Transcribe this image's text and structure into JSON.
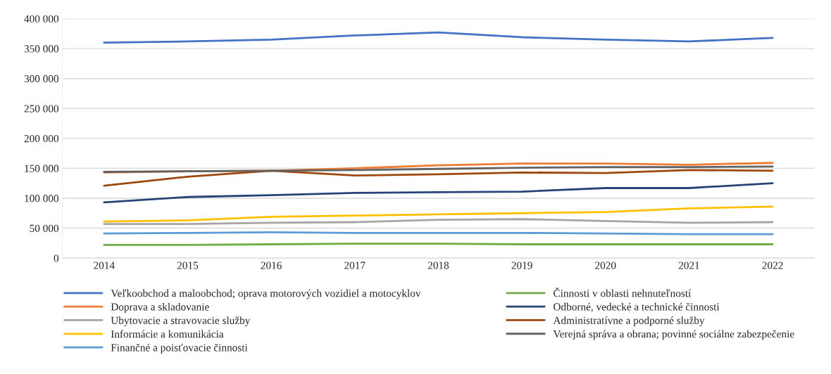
{
  "chart_data": {
    "type": "line",
    "categories": [
      "2014",
      "2015",
      "2016",
      "2017",
      "2018",
      "2019",
      "2020",
      "2021",
      "2022"
    ],
    "ylim": [
      0,
      400000
    ],
    "yticks": [
      {
        "value": 0,
        "label": "0"
      },
      {
        "value": 50000,
        "label": "50 000"
      },
      {
        "value": 100000,
        "label": "100 000"
      },
      {
        "value": 150000,
        "label": "150 000"
      },
      {
        "value": 200000,
        "label": "200 000"
      },
      {
        "value": 250000,
        "label": "250 000"
      },
      {
        "value": 300000,
        "label": "300 000"
      },
      {
        "value": 350000,
        "label": "350 000"
      },
      {
        "value": 400000,
        "label": "400 000"
      }
    ],
    "grid": "y",
    "legend": "bottom",
    "marker": "none",
    "line_style": "solid",
    "series": [
      {
        "name": "Veľkoobchod a maloobchod; oprava motorových vozidiel a motocyklov",
        "color": "#4472c4",
        "values": [
          360000,
          362000,
          365000,
          372000,
          377000,
          369000,
          365000,
          362000,
          368000
        ]
      },
      {
        "name": "Doprava a skladovanie",
        "color": "#ed7d31",
        "values": [
          143000,
          145000,
          146000,
          150000,
          155000,
          158000,
          158000,
          156000,
          159000
        ]
      },
      {
        "name": "Ubytovacie a stravovacie služby",
        "color": "#a5a5a5",
        "values": [
          57000,
          57000,
          59000,
          60000,
          64000,
          65000,
          62000,
          59000,
          60000
        ]
      },
      {
        "name": "Informácie a komunikácia",
        "color": "#ffc000",
        "values": [
          61000,
          63000,
          69000,
          71000,
          73000,
          75000,
          77000,
          83000,
          86000
        ]
      },
      {
        "name": "Finančné a poisťovacie činnosti",
        "color": "#5b9bd5",
        "values": [
          41000,
          42000,
          43000,
          42000,
          42000,
          42000,
          41000,
          40000,
          40000
        ]
      },
      {
        "name": "Činnosti v oblasti nehnuteľností",
        "color": "#70ad47",
        "values": [
          22000,
          22000,
          23000,
          24000,
          24000,
          23000,
          23000,
          23000,
          23000
        ]
      },
      {
        "name": "Odborné, vedecké a technické činnosti",
        "color": "#264478",
        "values": [
          93000,
          102000,
          105000,
          109000,
          110000,
          111000,
          117000,
          117000,
          125000
        ]
      },
      {
        "name": "Administratívne a podporné služby",
        "color": "#9e480e",
        "values": [
          121000,
          136000,
          146000,
          138000,
          140000,
          143000,
          142000,
          147000,
          146000
        ]
      },
      {
        "name": "Verejná správa a obrana; povinné sociálne zabezpečenie",
        "color": "#636363",
        "values": [
          144000,
          145000,
          146000,
          147000,
          149000,
          151000,
          152000,
          152000,
          153000
        ]
      }
    ]
  }
}
